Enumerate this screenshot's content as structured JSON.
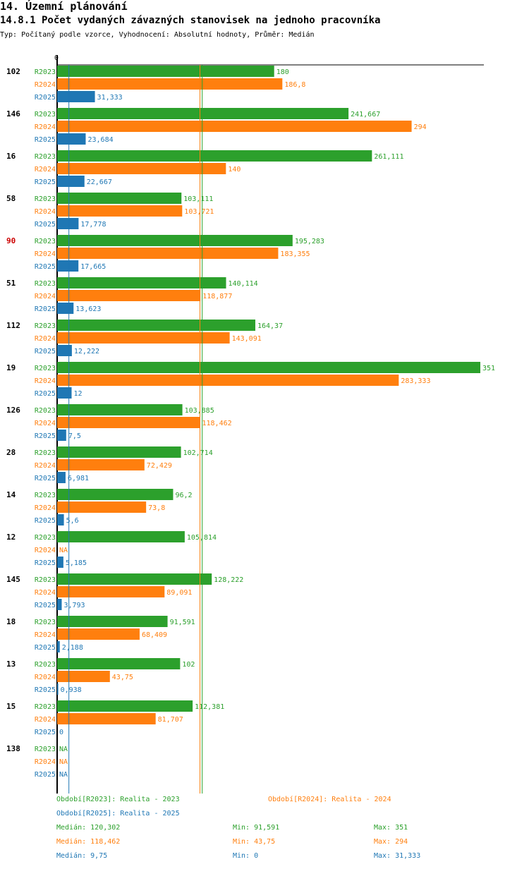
{
  "header": {
    "section": "14. Územní plánování",
    "title": "14.8.1 Počet vydaných závazných stanovisek na jednoho pracovníka",
    "subtitle": "Typ: Počítaný podle vzorce, Vyhodnocení: Absolutní hodnoty, Průměr: Medián"
  },
  "colors": {
    "R2023": "#2ca02c",
    "R2024": "#ff7f0e",
    "R2025": "#1f77b4",
    "highlight": "#cc0000"
  },
  "chart_data": {
    "type": "bar",
    "orientation": "horizontal",
    "axis_zero_label": "0",
    "xlim": [
      0,
      351
    ],
    "series_names": [
      "R2023",
      "R2024",
      "R2025"
    ],
    "highlight_category": "90",
    "categories": [
      "102",
      "146",
      "16",
      "58",
      "90",
      "51",
      "112",
      "19",
      "126",
      "28",
      "14",
      "12",
      "145",
      "18",
      "13",
      "15",
      "138"
    ],
    "series": [
      {
        "name": "R2023",
        "values": [
          180,
          241.667,
          261.111,
          103.111,
          195.283,
          140.114,
          164.37,
          351,
          103.885,
          102.714,
          96.2,
          105.814,
          128.222,
          91.591,
          102,
          112.381,
          null
        ],
        "labels": [
          "180",
          "241,667",
          "261,111",
          "103,111",
          "195,283",
          "140,114",
          "164,37",
          "351",
          "103,885",
          "102,714",
          "96,2",
          "105,814",
          "128,222",
          "91,591",
          "102",
          "112,381",
          "NA"
        ]
      },
      {
        "name": "R2024",
        "values": [
          186.8,
          294,
          140,
          103.721,
          183.355,
          118.877,
          143.091,
          283.333,
          118.462,
          72.429,
          73.8,
          null,
          89.091,
          68.409,
          43.75,
          81.707,
          null
        ],
        "labels": [
          "186,8",
          "294",
          "140",
          "103,721",
          "183,355",
          "118,877",
          "143,091",
          "283,333",
          "118,462",
          "72,429",
          "73,8",
          "NA",
          "89,091",
          "68,409",
          "43,75",
          "81,707",
          "NA"
        ]
      },
      {
        "name": "R2025",
        "values": [
          31.333,
          23.684,
          22.667,
          17.778,
          17.665,
          13.623,
          12.222,
          12,
          7.5,
          6.981,
          5.6,
          5.185,
          3.793,
          2.188,
          0.938,
          0,
          null
        ],
        "labels": [
          "31,333",
          "23,684",
          "22,667",
          "17,778",
          "17,665",
          "13,623",
          "12,222",
          "12",
          "7,5",
          "6,981",
          "5,6",
          "5,185",
          "3,793",
          "2,188",
          "0,938",
          "0",
          "NA"
        ]
      }
    ],
    "median_lines": [
      {
        "series": "R2023",
        "value": 120.302
      },
      {
        "series": "R2024",
        "value": 118.462
      },
      {
        "series": "R2025",
        "value": 9.75
      }
    ]
  },
  "legend": {
    "periods": [
      {
        "key": "R2023",
        "text": "Období[R2023]: Realita - 2023"
      },
      {
        "key": "R2024",
        "text": "Období[R2024]: Realita - 2024"
      },
      {
        "key": "R2025",
        "text": "Období[R2025]: Realita - 2025"
      }
    ],
    "stats": [
      {
        "key": "R2023",
        "median": "Medián: 120,302",
        "min": "Min: 91,591",
        "max": "Max: 351"
      },
      {
        "key": "R2024",
        "median": "Medián: 118,462",
        "min": "Min: 43,75",
        "max": "Max: 294"
      },
      {
        "key": "R2025",
        "median": "Medián: 9,75",
        "min": "Min: 0",
        "max": "Max: 31,333"
      }
    ]
  }
}
